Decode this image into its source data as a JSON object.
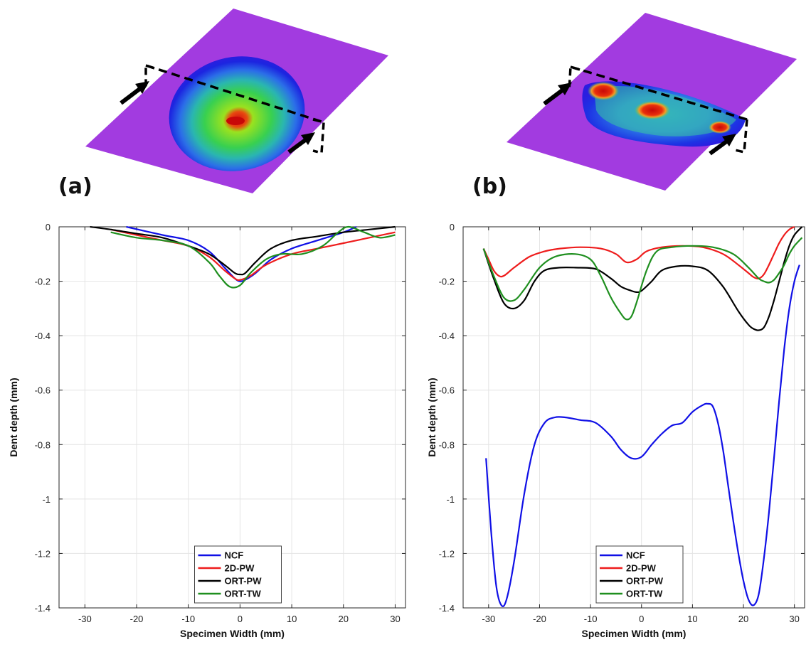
{
  "figure": {
    "panel_a_label": "(a)",
    "panel_b_label": "(b)"
  },
  "colors": {
    "surface": "#a23be0",
    "NCF": "#1010e6",
    "2D-PW": "#ee1c1c",
    "ORT-PW": "#000000",
    "ORT-TW": "#1f8f1f"
  },
  "chart_data": [
    {
      "type": "line",
      "panel": "(a)",
      "xlabel": "Specimen Width (mm)",
      "ylabel": "Dent depth (mm)",
      "xlim": [
        -35,
        32
      ],
      "ylim": [
        -1.4,
        0
      ],
      "xticks": [
        -30,
        -20,
        -10,
        0,
        10,
        20,
        30
      ],
      "yticks": [
        0,
        -0.2,
        -0.4,
        -0.6,
        -0.8,
        -1,
        -1.2,
        -1.4
      ],
      "ytick_labels": [
        "0",
        "-0.2",
        "-0.4",
        "-0.6",
        "-0.8",
        "-1",
        "-1.2",
        "-1.4"
      ],
      "grid": true,
      "legend_position": "bottom-center",
      "series": [
        {
          "name": "NCF",
          "color": "#1010e6",
          "x": [
            -22,
            -15,
            -10,
            -6,
            -3,
            -1,
            0,
            1,
            3,
            6,
            10,
            15,
            20,
            22.5
          ],
          "y": [
            0,
            -0.03,
            -0.05,
            -0.09,
            -0.15,
            -0.19,
            -0.2,
            -0.195,
            -0.17,
            -0.12,
            -0.08,
            -0.05,
            -0.02,
            0
          ]
        },
        {
          "name": "2D-PW",
          "color": "#ee1c1c",
          "x": [
            -25,
            -20,
            -15,
            -10,
            -6,
            -3,
            -1,
            0,
            2,
            5,
            10,
            15,
            20,
            25,
            30
          ],
          "y": [
            -0.01,
            -0.03,
            -0.05,
            -0.07,
            -0.11,
            -0.16,
            -0.19,
            -0.195,
            -0.18,
            -0.14,
            -0.1,
            -0.08,
            -0.06,
            -0.04,
            -0.02
          ]
        },
        {
          "name": "ORT-PW",
          "color": "#000000",
          "x": [
            -29,
            -25,
            -20,
            -15,
            -10,
            -6,
            -3,
            -1,
            0,
            1,
            3,
            6,
            10,
            15,
            20,
            25,
            30
          ],
          "y": [
            0,
            -0.01,
            -0.025,
            -0.04,
            -0.07,
            -0.1,
            -0.14,
            -0.17,
            -0.175,
            -0.17,
            -0.13,
            -0.08,
            -0.05,
            -0.035,
            -0.02,
            -0.01,
            0
          ]
        },
        {
          "name": "ORT-TW",
          "color": "#1f8f1f",
          "x": [
            -25,
            -20,
            -15,
            -10,
            -6,
            -4,
            -2,
            0,
            2,
            5,
            8,
            12,
            16,
            19,
            21,
            24,
            27,
            30
          ],
          "y": [
            -0.02,
            -0.04,
            -0.05,
            -0.07,
            -0.13,
            -0.18,
            -0.22,
            -0.215,
            -0.17,
            -0.12,
            -0.1,
            -0.1,
            -0.07,
            -0.02,
            0,
            -0.02,
            -0.04,
            -0.03
          ]
        }
      ]
    },
    {
      "type": "line",
      "panel": "(b)",
      "xlabel": "Specimen Width (mm)",
      "ylabel": "Dent depth (mm)",
      "xlim": [
        -35,
        32
      ],
      "ylim": [
        -1.4,
        0
      ],
      "xticks": [
        -30,
        -20,
        -10,
        0,
        10,
        20,
        30
      ],
      "yticks": [
        0,
        -0.2,
        -0.4,
        -0.6,
        -0.8,
        -1,
        -1.2,
        -1.4
      ],
      "ytick_labels": [
        "0",
        "-0.2",
        "-0.4",
        "-0.6",
        "-0.8",
        "-1",
        "-1.2",
        "-1.4"
      ],
      "grid": true,
      "legend_position": "bottom-center",
      "series": [
        {
          "name": "NCF",
          "color": "#1010e6",
          "x": [
            -30.5,
            -29.5,
            -28.5,
            -27.5,
            -26.5,
            -25,
            -23,
            -21,
            -19,
            -17,
            -15,
            -12,
            -9,
            -6,
            -4,
            -2,
            0,
            2,
            4,
            6,
            8,
            10,
            12,
            13,
            14,
            15,
            16,
            17,
            18,
            19,
            20,
            21,
            22,
            23,
            24,
            25,
            26,
            27,
            28,
            29,
            30,
            31
          ],
          "y": [
            -0.85,
            -1.12,
            -1.32,
            -1.39,
            -1.37,
            -1.23,
            -0.98,
            -0.8,
            -0.72,
            -0.7,
            -0.7,
            -0.71,
            -0.72,
            -0.77,
            -0.82,
            -0.85,
            -0.845,
            -0.8,
            -0.76,
            -0.73,
            -0.72,
            -0.68,
            -0.655,
            -0.65,
            -0.66,
            -0.72,
            -0.82,
            -0.95,
            -1.08,
            -1.2,
            -1.3,
            -1.37,
            -1.39,
            -1.35,
            -1.22,
            -1.05,
            -0.85,
            -0.64,
            -0.45,
            -0.3,
            -0.2,
            -0.14
          ]
        },
        {
          "name": "2D-PW",
          "color": "#ee1c1c",
          "x": [
            -31,
            -30,
            -29,
            -28,
            -27,
            -25,
            -22,
            -19,
            -16,
            -12,
            -8,
            -5,
            -3,
            -1,
            1,
            4,
            8,
            12,
            16,
            19,
            21,
            22,
            23,
            24,
            25,
            26,
            27,
            28,
            29,
            30
          ],
          "y": [
            -0.08,
            -0.12,
            -0.16,
            -0.18,
            -0.18,
            -0.15,
            -0.11,
            -0.09,
            -0.08,
            -0.075,
            -0.08,
            -0.1,
            -0.13,
            -0.12,
            -0.09,
            -0.075,
            -0.07,
            -0.075,
            -0.1,
            -0.14,
            -0.17,
            -0.185,
            -0.19,
            -0.175,
            -0.14,
            -0.1,
            -0.06,
            -0.03,
            -0.01,
            0
          ]
        },
        {
          "name": "ORT-PW",
          "color": "#000000",
          "x": [
            -31,
            -29,
            -27,
            -25,
            -23,
            -21,
            -19,
            -16,
            -13,
            -9,
            -6,
            -4,
            -2,
            -1,
            0,
            2,
            4,
            7,
            10,
            13,
            16,
            19,
            21,
            22,
            23,
            24,
            25,
            26,
            27,
            28,
            29,
            30,
            31.5
          ],
          "y": [
            -0.08,
            -0.19,
            -0.28,
            -0.3,
            -0.27,
            -0.2,
            -0.16,
            -0.15,
            -0.15,
            -0.155,
            -0.19,
            -0.22,
            -0.235,
            -0.24,
            -0.235,
            -0.2,
            -0.16,
            -0.145,
            -0.145,
            -0.16,
            -0.22,
            -0.31,
            -0.36,
            -0.375,
            -0.38,
            -0.37,
            -0.33,
            -0.27,
            -0.2,
            -0.13,
            -0.07,
            -0.03,
            0
          ]
        },
        {
          "name": "ORT-TW",
          "color": "#1f8f1f",
          "x": [
            -31,
            -29,
            -27,
            -25,
            -23,
            -20,
            -17,
            -13,
            -10,
            -8,
            -6,
            -4,
            -3,
            -2,
            -1,
            1,
            3,
            6,
            10,
            14,
            18,
            21,
            23,
            24,
            25,
            26,
            27,
            28,
            29,
            30,
            31.5
          ],
          "y": [
            -0.08,
            -0.18,
            -0.26,
            -0.27,
            -0.23,
            -0.15,
            -0.11,
            -0.1,
            -0.12,
            -0.18,
            -0.26,
            -0.32,
            -0.34,
            -0.33,
            -0.28,
            -0.16,
            -0.09,
            -0.075,
            -0.07,
            -0.075,
            -0.1,
            -0.15,
            -0.19,
            -0.2,
            -0.205,
            -0.195,
            -0.17,
            -0.14,
            -0.1,
            -0.07,
            -0.04
          ]
        }
      ]
    }
  ]
}
